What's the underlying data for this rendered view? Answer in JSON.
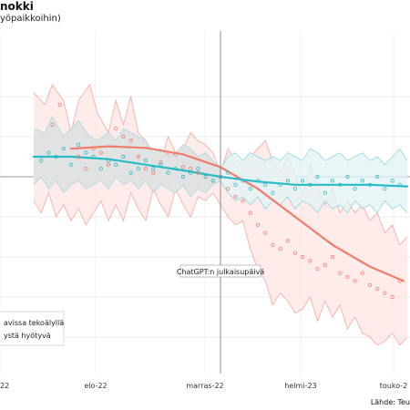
{
  "chart_data": {
    "type": "line",
    "title": "nokki",
    "subtitle": "yöpaikkoihin)",
    "x_tick_labels": [
      "22",
      "elo-22",
      "marras-22",
      "helmi-23",
      "touko-2"
    ],
    "y_range": [
      -2.2,
      1.2
    ],
    "grid": true,
    "annotation": "ChatGPT:n julkaisupäivä",
    "legend_entries": [
      "avissa tekoälyllä",
      "ystä hyötyvä"
    ],
    "legend_position": "bottom-left",
    "source": "Lähde: Teu",
    "colors": {
      "exposed": "#f07c6c",
      "benefiting": "#29bcc4",
      "exposed_band": "#fde5e3",
      "benefiting_band": "#e2f3f6",
      "grey_band": "#dcdcdc"
    },
    "series": [
      {
        "name": "avissa tekoälyllä",
        "trend": [
          [
            -40,
            0.35
          ],
          [
            -30,
            0.38
          ],
          [
            -20,
            0.36
          ],
          [
            -10,
            0.28
          ],
          [
            0,
            0.12
          ],
          [
            10,
            -0.15
          ],
          [
            20,
            -0.5
          ],
          [
            30,
            -0.85
          ],
          [
            40,
            -1.12
          ],
          [
            49,
            -1.3
          ]
        ],
        "upper": [
          [
            -50,
            1.05
          ],
          [
            -47,
            0.9
          ],
          [
            -45,
            1.15
          ],
          [
            -42,
            0.95
          ],
          [
            -40,
            0.55
          ],
          [
            -38,
            0.95
          ],
          [
            -35,
            1.15
          ],
          [
            -33,
            0.8
          ],
          [
            -30,
            0.55
          ],
          [
            -28,
            0.95
          ],
          [
            -26,
            0.65
          ],
          [
            -24,
            1.0
          ],
          [
            -22,
            0.55
          ],
          [
            -20,
            0.45
          ],
          [
            -18,
            0.3
          ],
          [
            -16,
            0.2
          ],
          [
            -14,
            0.5
          ],
          [
            -12,
            0.3
          ],
          [
            -10,
            0.35
          ],
          [
            -8,
            0.55
          ],
          [
            -6,
            0.45
          ],
          [
            -4,
            0.4
          ],
          [
            -2,
            0.3
          ],
          [
            0,
            0.05
          ],
          [
            2,
            0.35
          ],
          [
            4,
            0.2
          ],
          [
            6,
            0.15
          ],
          [
            8,
            0.25
          ],
          [
            10,
            0.35
          ],
          [
            12,
            0.45
          ],
          [
            14,
            0.2
          ],
          [
            16,
            0.05
          ],
          [
            18,
            0.25
          ],
          [
            20,
            0.05
          ],
          [
            22,
            -0.25
          ],
          [
            24,
            0.15
          ],
          [
            26,
            -0.1
          ],
          [
            28,
            -0.35
          ],
          [
            30,
            -0.15
          ],
          [
            32,
            -0.45
          ],
          [
            34,
            -0.3
          ],
          [
            36,
            -0.45
          ],
          [
            38,
            -0.35
          ],
          [
            40,
            -0.55
          ],
          [
            42,
            -0.45
          ],
          [
            44,
            -0.7
          ],
          [
            46,
            -0.6
          ],
          [
            48,
            -0.85
          ],
          [
            50,
            -0.75
          ]
        ],
        "lower": [
          [
            -50,
            -0.3
          ],
          [
            -48,
            -0.45
          ],
          [
            -46,
            -0.2
          ],
          [
            -44,
            -0.5
          ],
          [
            -42,
            -0.35
          ],
          [
            -40,
            -0.55
          ],
          [
            -38,
            -0.4
          ],
          [
            -36,
            -0.6
          ],
          [
            -34,
            -0.45
          ],
          [
            -32,
            -0.3
          ],
          [
            -30,
            -0.55
          ],
          [
            -28,
            -0.35
          ],
          [
            -26,
            -0.55
          ],
          [
            -24,
            -0.2
          ],
          [
            -22,
            -0.4
          ],
          [
            -20,
            -0.55
          ],
          [
            -18,
            -0.15
          ],
          [
            -16,
            -0.35
          ],
          [
            -14,
            -0.5
          ],
          [
            -12,
            -0.15
          ],
          [
            -10,
            -0.35
          ],
          [
            -8,
            -0.5
          ],
          [
            -6,
            -0.25
          ],
          [
            -4,
            -0.3
          ],
          [
            -2,
            -0.2
          ],
          [
            0,
            -0.35
          ],
          [
            2,
            -0.5
          ],
          [
            4,
            -0.6
          ],
          [
            6,
            -0.55
          ],
          [
            8,
            -0.9
          ],
          [
            10,
            -1.15
          ],
          [
            12,
            -1.3
          ],
          [
            14,
            -1.6
          ],
          [
            16,
            -1.45
          ],
          [
            18,
            -1.55
          ],
          [
            20,
            -1.7
          ],
          [
            22,
            -1.65
          ],
          [
            24,
            -1.5
          ],
          [
            26,
            -1.8
          ],
          [
            28,
            -1.55
          ],
          [
            30,
            -1.75
          ],
          [
            32,
            -1.6
          ],
          [
            34,
            -1.9
          ],
          [
            36,
            -1.75
          ],
          [
            38,
            -1.95
          ],
          [
            40,
            -2.0
          ],
          [
            42,
            -2.1
          ],
          [
            44,
            -2.05
          ],
          [
            46,
            -1.95
          ],
          [
            48,
            -2.1
          ],
          [
            50,
            -2.0
          ]
        ],
        "points": [
          [
            -45,
            0.65
          ],
          [
            -43,
            0.9
          ],
          [
            -38,
            0.25
          ],
          [
            -36,
            0.1
          ],
          [
            -34,
            0.35
          ],
          [
            -32,
            0.3
          ],
          [
            -30,
            0.15
          ],
          [
            -28,
            0.6
          ],
          [
            -26,
            0.5
          ],
          [
            -24,
            0.45
          ],
          [
            -22,
            0.25
          ],
          [
            -20,
            0.1
          ],
          [
            -18,
            0.05
          ],
          [
            -16,
            0.18
          ],
          [
            -14,
            0.3
          ],
          [
            -12,
            0.28
          ],
          [
            -10,
            0.12
          ],
          [
            -8,
            0.1
          ],
          [
            -6,
            0.05
          ],
          [
            -4,
            0.0
          ],
          [
            -2,
            -0.05
          ],
          [
            0,
            0.0
          ],
          [
            2,
            -0.15
          ],
          [
            4,
            -0.25
          ],
          [
            6,
            -0.3
          ],
          [
            8,
            -0.45
          ],
          [
            10,
            -0.6
          ],
          [
            12,
            -0.7
          ],
          [
            14,
            -0.85
          ],
          [
            16,
            -0.9
          ],
          [
            18,
            -0.8
          ],
          [
            20,
            -0.95
          ],
          [
            22,
            -1.0
          ],
          [
            24,
            -1.05
          ],
          [
            26,
            -1.15
          ],
          [
            28,
            -1.1
          ],
          [
            30,
            -1.0
          ],
          [
            32,
            -1.2
          ],
          [
            34,
            -1.25
          ],
          [
            36,
            -1.3
          ],
          [
            38,
            -1.2
          ],
          [
            40,
            -1.35
          ],
          [
            42,
            -1.4
          ],
          [
            44,
            -1.45
          ],
          [
            46,
            -1.5
          ],
          [
            48,
            -1.3
          ]
        ]
      },
      {
        "name": "ystä hyötyvä",
        "trend": [
          [
            -50,
            0.25
          ],
          [
            -40,
            0.25
          ],
          [
            -30,
            0.22
          ],
          [
            -20,
            0.15
          ],
          [
            -10,
            0.08
          ],
          [
            0,
            0.0
          ],
          [
            10,
            -0.06
          ],
          [
            20,
            -0.1
          ],
          [
            30,
            -0.1
          ],
          [
            40,
            -0.1
          ],
          [
            50,
            -0.12
          ]
        ],
        "upper": [
          [
            -50,
            0.6
          ],
          [
            -47,
            0.55
          ],
          [
            -45,
            0.75
          ],
          [
            -42,
            0.5
          ],
          [
            -40,
            0.6
          ],
          [
            -38,
            0.7
          ],
          [
            -35,
            0.5
          ],
          [
            -33,
            0.45
          ],
          [
            -30,
            0.55
          ],
          [
            -28,
            0.45
          ],
          [
            -26,
            0.6
          ],
          [
            -24,
            0.55
          ],
          [
            -22,
            0.5
          ],
          [
            -20,
            0.45
          ],
          [
            -18,
            0.3
          ],
          [
            -16,
            0.35
          ],
          [
            -14,
            0.25
          ],
          [
            -12,
            0.3
          ],
          [
            -10,
            0.4
          ],
          [
            -8,
            0.35
          ],
          [
            -6,
            0.25
          ],
          [
            -4,
            0.3
          ],
          [
            -2,
            0.2
          ],
          [
            0,
            0.1
          ],
          [
            2,
            0.25
          ],
          [
            4,
            0.3
          ],
          [
            6,
            0.2
          ],
          [
            8,
            0.3
          ],
          [
            10,
            0.25
          ],
          [
            12,
            0.2
          ],
          [
            14,
            0.25
          ],
          [
            16,
            0.2
          ],
          [
            18,
            0.3
          ],
          [
            20,
            0.25
          ],
          [
            22,
            0.2
          ],
          [
            24,
            0.35
          ],
          [
            26,
            0.3
          ],
          [
            28,
            0.2
          ],
          [
            30,
            0.25
          ],
          [
            32,
            0.3
          ],
          [
            34,
            0.2
          ],
          [
            36,
            0.25
          ],
          [
            38,
            0.3
          ],
          [
            40,
            0.2
          ],
          [
            42,
            0.25
          ],
          [
            44,
            0.15
          ],
          [
            46,
            0.25
          ],
          [
            48,
            0.35
          ],
          [
            50,
            0.2
          ]
        ],
        "lower": [
          [
            -50,
            -0.1
          ],
          [
            -48,
            0.0
          ],
          [
            -46,
            -0.15
          ],
          [
            -44,
            -0.05
          ],
          [
            -42,
            -0.2
          ],
          [
            -40,
            -0.1
          ],
          [
            -38,
            -0.05
          ],
          [
            -36,
            -0.15
          ],
          [
            -34,
            -0.1
          ],
          [
            -32,
            -0.05
          ],
          [
            -30,
            -0.15
          ],
          [
            -28,
            0.0
          ],
          [
            -26,
            -0.1
          ],
          [
            -24,
            -0.05
          ],
          [
            -22,
            -0.15
          ],
          [
            -20,
            -0.05
          ],
          [
            -18,
            -0.2
          ],
          [
            -16,
            -0.1
          ],
          [
            -14,
            -0.15
          ],
          [
            -12,
            -0.2
          ],
          [
            -10,
            -0.1
          ],
          [
            -8,
            -0.25
          ],
          [
            -6,
            -0.15
          ],
          [
            -4,
            -0.2
          ],
          [
            -2,
            -0.1
          ],
          [
            0,
            -0.05
          ],
          [
            2,
            -0.2
          ],
          [
            4,
            -0.3
          ],
          [
            6,
            -0.25
          ],
          [
            8,
            -0.35
          ],
          [
            10,
            -0.25
          ],
          [
            12,
            -0.4
          ],
          [
            14,
            -0.3
          ],
          [
            16,
            -0.35
          ],
          [
            18,
            -0.25
          ],
          [
            20,
            -0.4
          ],
          [
            22,
            -0.3
          ],
          [
            24,
            -0.35
          ],
          [
            26,
            -0.45
          ],
          [
            28,
            -0.3
          ],
          [
            30,
            -0.4
          ],
          [
            32,
            -0.35
          ],
          [
            34,
            -0.45
          ],
          [
            36,
            -0.3
          ],
          [
            38,
            -0.4
          ],
          [
            40,
            -0.35
          ],
          [
            42,
            -0.45
          ],
          [
            44,
            -0.3
          ],
          [
            46,
            -0.4
          ],
          [
            48,
            -0.35
          ],
          [
            50,
            -0.45
          ]
        ],
        "points": [
          [
            -48,
            0.2
          ],
          [
            -46,
            0.3
          ],
          [
            -44,
            0.25
          ],
          [
            -42,
            0.35
          ],
          [
            -40,
            0.15
          ],
          [
            -38,
            0.4
          ],
          [
            -36,
            0.3
          ],
          [
            -34,
            0.25
          ],
          [
            -32,
            0.1
          ],
          [
            -30,
            0.2
          ],
          [
            -28,
            0.15
          ],
          [
            -26,
            0.25
          ],
          [
            -24,
            0.05
          ],
          [
            -22,
            0.1
          ],
          [
            -20,
            0.2
          ],
          [
            -18,
            0.1
          ],
          [
            -16,
            0.15
          ],
          [
            -14,
            0.05
          ],
          [
            -12,
            0.1
          ],
          [
            -10,
            0.0
          ],
          [
            -8,
            0.05
          ],
          [
            -6,
            0.1
          ],
          [
            -4,
            0.0
          ],
          [
            -2,
            -0.05
          ],
          [
            0,
            0.0
          ],
          [
            2,
            0.05
          ],
          [
            4,
            -0.1
          ],
          [
            6,
            -0.05
          ],
          [
            8,
            -0.15
          ],
          [
            10,
            -0.05
          ],
          [
            12,
            -0.1
          ],
          [
            14,
            -0.2
          ],
          [
            16,
            -0.1
          ],
          [
            18,
            -0.05
          ],
          [
            20,
            -0.15
          ],
          [
            22,
            -0.05
          ],
          [
            24,
            -0.1
          ],
          [
            26,
            0.0
          ],
          [
            28,
            -0.2
          ],
          [
            30,
            -0.05
          ],
          [
            32,
            -0.1
          ],
          [
            34,
            0.0
          ],
          [
            36,
            -0.15
          ],
          [
            38,
            -0.05
          ],
          [
            40,
            -0.1
          ],
          [
            42,
            0.0
          ],
          [
            44,
            -0.15
          ],
          [
            46,
            -0.05
          ],
          [
            48,
            -0.1
          ]
        ]
      }
    ]
  }
}
